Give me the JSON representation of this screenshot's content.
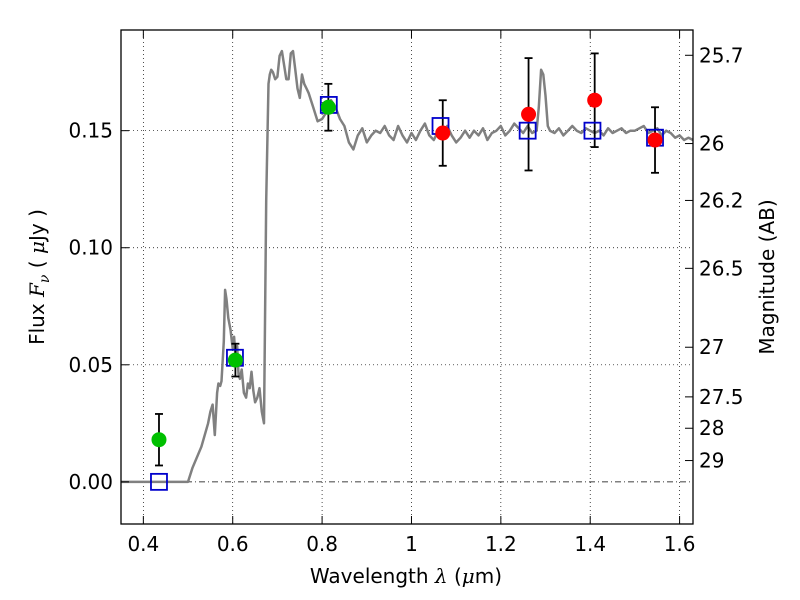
{
  "chart_data": {
    "type": "scatter",
    "xlabel": "Wavelength  λ (μm)",
    "ylabel_left": "Flux  Fν  ( μJy )",
    "ylabel_right": "Magnitude (AB)",
    "xlim": [
      0.35,
      1.63
    ],
    "ylim": [
      -0.018,
      0.193
    ],
    "xticks": [
      0.4,
      0.6,
      0.8,
      1.0,
      1.2,
      1.4,
      1.6
    ],
    "xtick_labels": [
      "0.4",
      "0.6",
      "0.8",
      "1",
      "1.2",
      "1.4",
      "1.6"
    ],
    "yticks": [
      0.0,
      0.05,
      0.1,
      0.15
    ],
    "ytick_labels": [
      "0.00",
      "0.05",
      "0.10",
      "0.15"
    ],
    "right_ticks": [
      {
        "label": "25.7",
        "flux": 0.1822
      },
      {
        "label": "26",
        "flux": 0.1445
      },
      {
        "label": "26.2",
        "flux": 0.1202
      },
      {
        "label": "26.5",
        "flux": 0.0912
      },
      {
        "label": "27",
        "flux": 0.0575
      },
      {
        "label": "27.5",
        "flux": 0.0363
      },
      {
        "label": "28",
        "flux": 0.0229
      },
      {
        "label": "29",
        "flux": 0.0091
      }
    ],
    "grid": true,
    "zero_line": true,
    "model_sed": {
      "color": "#808080",
      "x": [
        0.35,
        0.4,
        0.45,
        0.5,
        0.51,
        0.53,
        0.545,
        0.55,
        0.555,
        0.56,
        0.565,
        0.568,
        0.572,
        0.575,
        0.58,
        0.583,
        0.586,
        0.59,
        0.595,
        0.6,
        0.603,
        0.606,
        0.61,
        0.613,
        0.616,
        0.62,
        0.625,
        0.63,
        0.634,
        0.638,
        0.642,
        0.646,
        0.65,
        0.655,
        0.66,
        0.665,
        0.67,
        0.675,
        0.68,
        0.683,
        0.686,
        0.69,
        0.695,
        0.7,
        0.705,
        0.71,
        0.715,
        0.72,
        0.725,
        0.73,
        0.735,
        0.74,
        0.745,
        0.75,
        0.755,
        0.76,
        0.765,
        0.77,
        0.78,
        0.79,
        0.8,
        0.81,
        0.82,
        0.83,
        0.84,
        0.85,
        0.86,
        0.87,
        0.88,
        0.89,
        0.9,
        0.91,
        0.92,
        0.93,
        0.94,
        0.95,
        0.96,
        0.97,
        0.98,
        0.99,
        1.0,
        1.01,
        1.02,
        1.03,
        1.04,
        1.05,
        1.06,
        1.07,
        1.08,
        1.09,
        1.1,
        1.11,
        1.12,
        1.13,
        1.14,
        1.15,
        1.16,
        1.17,
        1.18,
        1.19,
        1.2,
        1.21,
        1.22,
        1.23,
        1.24,
        1.25,
        1.26,
        1.27,
        1.28,
        1.285,
        1.29,
        1.295,
        1.3,
        1.305,
        1.31,
        1.32,
        1.33,
        1.34,
        1.35,
        1.36,
        1.37,
        1.38,
        1.39,
        1.4,
        1.41,
        1.42,
        1.43,
        1.44,
        1.45,
        1.46,
        1.47,
        1.48,
        1.49,
        1.5,
        1.51,
        1.52,
        1.53,
        1.54,
        1.55,
        1.56,
        1.57,
        1.58,
        1.59,
        1.6,
        1.61,
        1.62,
        1.63
      ],
      "y": [
        0.0,
        0.0,
        0.0,
        0.0,
        0.006,
        0.015,
        0.025,
        0.03,
        0.033,
        0.02,
        0.038,
        0.042,
        0.041,
        0.043,
        0.06,
        0.082,
        0.078,
        0.07,
        0.065,
        0.057,
        0.062,
        0.054,
        0.058,
        0.046,
        0.044,
        0.048,
        0.038,
        0.036,
        0.042,
        0.04,
        0.047,
        0.039,
        0.034,
        0.036,
        0.04,
        0.03,
        0.025,
        0.12,
        0.17,
        0.174,
        0.176,
        0.175,
        0.172,
        0.173,
        0.182,
        0.184,
        0.178,
        0.172,
        0.172,
        0.183,
        0.184,
        0.176,
        0.168,
        0.164,
        0.174,
        0.17,
        0.168,
        0.166,
        0.16,
        0.154,
        0.155,
        0.158,
        0.163,
        0.16,
        0.155,
        0.152,
        0.145,
        0.142,
        0.148,
        0.151,
        0.145,
        0.148,
        0.15,
        0.149,
        0.152,
        0.148,
        0.146,
        0.152,
        0.148,
        0.145,
        0.149,
        0.146,
        0.15,
        0.153,
        0.148,
        0.146,
        0.15,
        0.149,
        0.152,
        0.148,
        0.145,
        0.147,
        0.15,
        0.147,
        0.15,
        0.148,
        0.151,
        0.146,
        0.149,
        0.15,
        0.152,
        0.148,
        0.15,
        0.153,
        0.151,
        0.149,
        0.152,
        0.149,
        0.15,
        0.16,
        0.176,
        0.174,
        0.165,
        0.152,
        0.15,
        0.149,
        0.151,
        0.148,
        0.15,
        0.152,
        0.15,
        0.149,
        0.151,
        0.15,
        0.149,
        0.15,
        0.148,
        0.151,
        0.149,
        0.15,
        0.151,
        0.149,
        0.15,
        0.15,
        0.151,
        0.152,
        0.149,
        0.15,
        0.151,
        0.148,
        0.15,
        0.149,
        0.147,
        0.148,
        0.146,
        0.147,
        0.146
      ]
    },
    "green_points": {
      "color": "#00c000",
      "points": [
        {
          "x": 0.435,
          "y": 0.018,
          "err": 0.011
        },
        {
          "x": 0.606,
          "y": 0.052,
          "err": 0.007
        },
        {
          "x": 0.814,
          "y": 0.16,
          "err": 0.01
        }
      ]
    },
    "red_points": {
      "color": "#ff0000",
      "points": [
        {
          "x": 1.07,
          "y": 0.149,
          "err": 0.014
        },
        {
          "x": 1.262,
          "y": 0.157,
          "err": 0.024
        },
        {
          "x": 1.41,
          "y": 0.163,
          "err": 0.02
        },
        {
          "x": 1.545,
          "y": 0.146,
          "err": 0.014
        }
      ]
    },
    "model_squares": {
      "color": "#0000cc",
      "points": [
        {
          "x": 0.435,
          "y": 0.0
        },
        {
          "x": 0.605,
          "y": 0.053
        },
        {
          "x": 0.815,
          "y": 0.161
        },
        {
          "x": 1.065,
          "y": 0.152
        },
        {
          "x": 1.26,
          "y": 0.15
        },
        {
          "x": 1.405,
          "y": 0.15
        },
        {
          "x": 1.545,
          "y": 0.147
        }
      ]
    }
  }
}
